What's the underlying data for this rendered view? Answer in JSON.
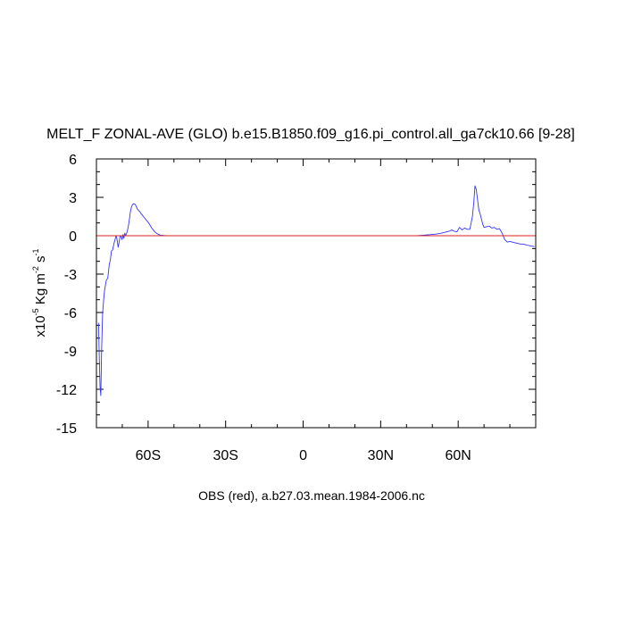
{
  "chart_data": {
    "type": "line",
    "title": "MELT_F ZONAL-AVE (GLO) b.e15.B1850.f09_g16.pi_control.all_ga7ck10.66 [9-28]",
    "xlabel": "OBS (red), a.b27.03.mean.1984-2006.nc",
    "ylabel": {
      "prefix": "x10",
      "exp1": "-5",
      "middle": " Kg m",
      "exp2": "-2",
      "suffix": " s",
      "exp3": "-1"
    },
    "xlim": [
      -80,
      90
    ],
    "ylim": [
      -15,
      6
    ],
    "x_ticks": [
      {
        "value": -60,
        "label": "60S"
      },
      {
        "value": -30,
        "label": "30S"
      },
      {
        "value": 0,
        "label": "0"
      },
      {
        "value": 30,
        "label": "30N"
      },
      {
        "value": 60,
        "label": "60N"
      }
    ],
    "y_ticks": [
      {
        "value": 6,
        "label": "6"
      },
      {
        "value": 3,
        "label": "3"
      },
      {
        "value": 0,
        "label": "0"
      },
      {
        "value": -3,
        "label": "-3"
      },
      {
        "value": -6,
        "label": "-6"
      },
      {
        "value": -9,
        "label": "-9"
      },
      {
        "value": -12,
        "label": "-12"
      },
      {
        "value": -15,
        "label": "-15"
      }
    ],
    "x_minor_step": 10,
    "y_minor_step": 1,
    "series": [
      {
        "color": "#3333ff",
        "x": [
          -79.2,
          -78.9,
          -78.6,
          -78.3,
          -78.0,
          -77.6,
          -77.2,
          -76.8,
          -76.2,
          -75.6,
          -75.0,
          -74.6,
          -74.2,
          -73.7,
          -73.2,
          -72.8,
          -72.4,
          -72.0,
          -71.6,
          -71.2,
          -70.9,
          -70.5,
          -70.1,
          -69.7,
          -69.4,
          -69.0,
          -68.7,
          -68.3,
          -68.0,
          -67.6,
          -67.3,
          -66.9,
          -66.5,
          -66.0,
          -65.5,
          -65.0,
          -64.6,
          -64.2,
          -63.8,
          -63.3,
          -62.8,
          -62.2,
          -61.6,
          -61.0,
          -60.4,
          -59.8,
          -59.2,
          -58.6,
          -58.0,
          -57.4,
          -56.8,
          -56.2,
          -55.6,
          -55.0,
          -54.0,
          -53.0,
          -51.0,
          -45.0,
          -30.0,
          -10.0,
          10.0,
          30.0,
          44.0,
          47.0,
          49.0,
          51.0,
          53.0,
          54.5,
          55.5,
          56.5,
          57.5,
          58.5,
          59.5,
          60.5,
          61.5,
          62.5,
          63.5,
          64.5,
          65.5,
          66.0,
          66.5,
          67.0,
          67.5,
          68.0,
          68.5,
          69.0,
          69.5,
          70.0,
          71.0,
          72.0,
          73.0,
          74.0,
          75.0,
          76.0,
          77.0,
          78.0,
          79.0,
          80.0,
          81.0,
          82.0,
          83.0,
          84.0,
          85.0,
          86.0,
          87.0,
          88.0,
          89.5
        ],
        "y": [
          -6.8,
          -9.5,
          -11.8,
          -12.5,
          -9.0,
          -6.0,
          -5.0,
          -4.2,
          -3.5,
          -3.3,
          -2.2,
          -1.9,
          -1.2,
          -1.1,
          -0.6,
          -0.3,
          0.0,
          -0.3,
          -0.9,
          -0.5,
          -0.1,
          0.0,
          -0.3,
          0.1,
          -0.2,
          0.2,
          0.0,
          0.2,
          0.4,
          0.8,
          1.2,
          1.8,
          2.2,
          2.45,
          2.5,
          2.45,
          2.3,
          2.1,
          2.0,
          1.9,
          1.75,
          1.6,
          1.45,
          1.3,
          1.15,
          1.0,
          0.8,
          0.6,
          0.45,
          0.3,
          0.2,
          0.12,
          0.07,
          0.04,
          0.02,
          0.01,
          0.0,
          0.0,
          0.0,
          0.0,
          0.0,
          0.0,
          0.0,
          0.05,
          0.08,
          0.12,
          0.18,
          0.25,
          0.3,
          0.35,
          0.45,
          0.35,
          0.3,
          0.65,
          0.45,
          0.6,
          0.5,
          0.5,
          1.5,
          2.5,
          3.9,
          3.6,
          2.8,
          2.0,
          1.7,
          1.3,
          0.9,
          0.65,
          0.7,
          0.75,
          0.6,
          0.65,
          0.5,
          0.55,
          0.2,
          -0.3,
          -0.5,
          -0.45,
          -0.5,
          -0.55,
          -0.6,
          -0.65,
          -0.65,
          -0.7,
          -0.75,
          -0.8,
          -0.85
        ]
      },
      {
        "color": "#dd2222",
        "x": [
          -80,
          90
        ],
        "y": [
          0,
          0
        ]
      }
    ]
  }
}
